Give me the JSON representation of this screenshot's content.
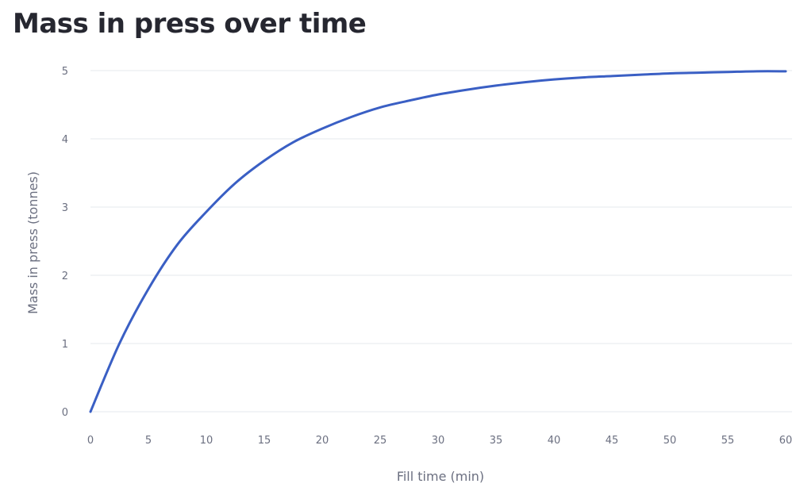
{
  "chart_data": {
    "type": "line",
    "title": "Mass in press over time",
    "xlabel": "Fill time (min)",
    "ylabel": "Mass in press (tonnes)",
    "xlim": [
      0,
      60
    ],
    "ylim": [
      0,
      5
    ],
    "x_ticks": [
      0,
      5,
      10,
      15,
      20,
      25,
      30,
      35,
      40,
      45,
      50,
      55,
      60
    ],
    "y_ticks": [
      0,
      1,
      2,
      3,
      4,
      5
    ],
    "grid": "horizontal",
    "series": [
      {
        "color": "#3a5fc4",
        "x": [
          0,
          2.5,
          5,
          7.5,
          10,
          12.5,
          15,
          17.5,
          20,
          22.5,
          25,
          27.5,
          30,
          32.5,
          35,
          37.5,
          40,
          42.5,
          45,
          47.5,
          50,
          52.5,
          55,
          57.5,
          60
        ],
        "y": [
          0,
          1.0,
          1.8,
          2.45,
          2.93,
          3.35,
          3.68,
          3.95,
          4.15,
          4.32,
          4.46,
          4.56,
          4.65,
          4.72,
          4.78,
          4.83,
          4.87,
          4.9,
          4.92,
          4.94,
          4.96,
          4.97,
          4.98,
          4.99,
          4.99
        ]
      }
    ]
  }
}
